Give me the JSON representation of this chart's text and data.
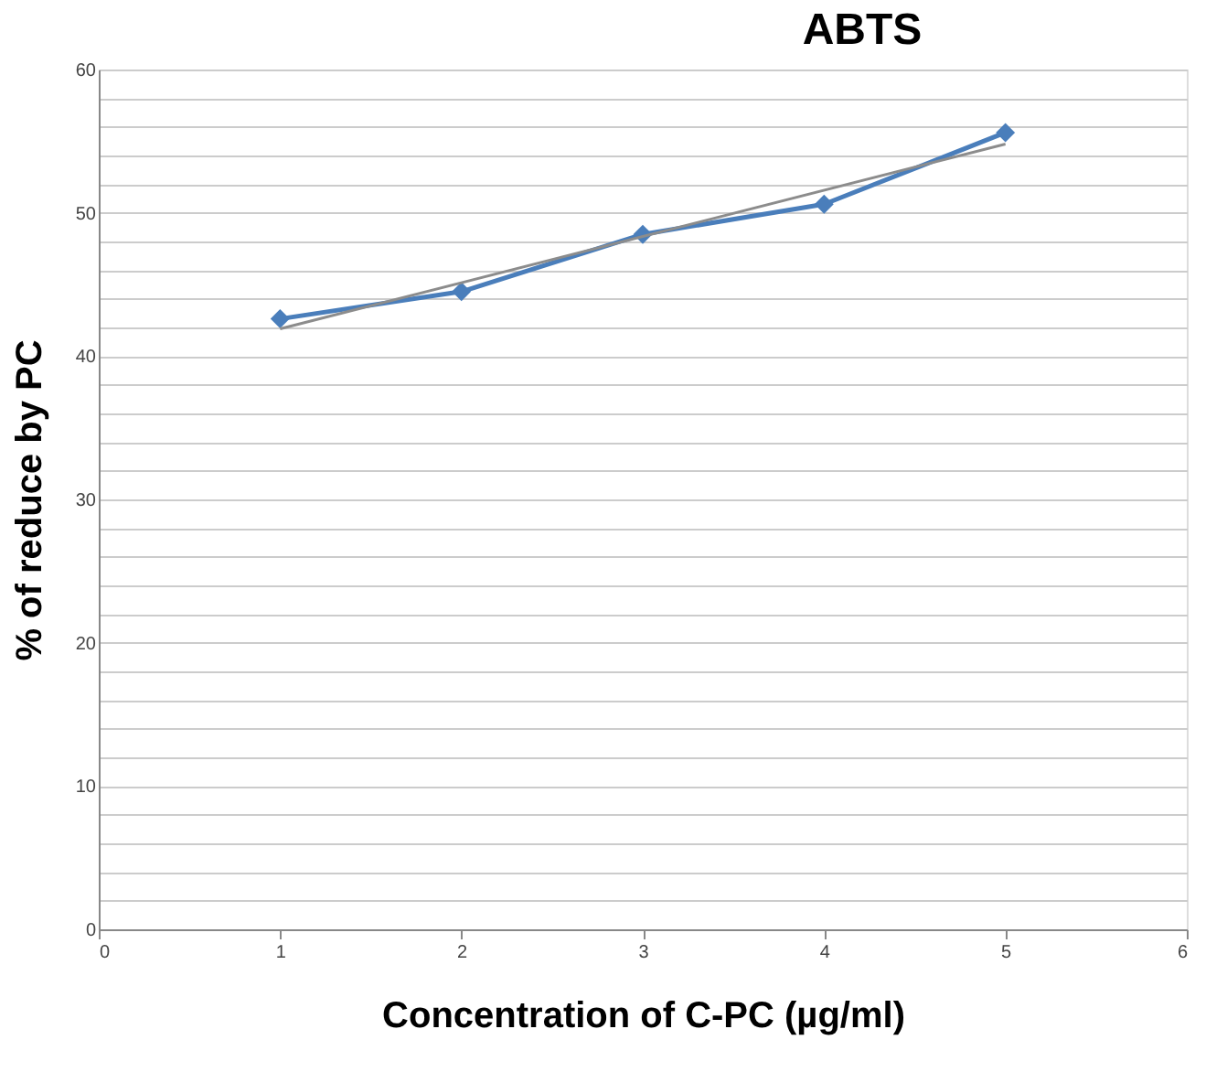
{
  "chart_data": {
    "type": "line",
    "title": "ABTS",
    "xlabel": "Concentration of C-PC  (µg/ml)",
    "ylabel": "% of reduce by PC",
    "x": [
      1,
      2,
      3,
      4,
      5
    ],
    "series": [
      {
        "color": "#4a7ebb",
        "values": [
          42.6,
          44.5,
          48.5,
          50.6,
          55.6
        ],
        "marker": "diamond"
      },
      {
        "type": "line",
        "color": "#8c8c8c",
        "x": [
          1,
          5
        ],
        "values": [
          41.9,
          54.8
        ],
        "marker": "none"
      }
    ],
    "xlim": [
      0,
      6
    ],
    "xticks": [
      0,
      1,
      2,
      3,
      4,
      5,
      6
    ],
    "ylim": [
      0,
      60
    ],
    "yticks": [
      0,
      {
        "value": 2,
        "label": null
      },
      {
        "value": 4,
        "label": null
      },
      {
        "value": 6,
        "label": null
      },
      {
        "value": 8,
        "label": null
      },
      10,
      {
        "value": 12,
        "label": null
      },
      {
        "value": 14,
        "label": null
      },
      {
        "value": 16,
        "label": null
      },
      {
        "value": 18,
        "label": null
      },
      20,
      {
        "value": 22,
        "label": null
      },
      {
        "value": 24,
        "label": null
      },
      {
        "value": 26,
        "label": null
      },
      {
        "value": 28,
        "label": null
      },
      30,
      {
        "value": 32,
        "label": null
      },
      {
        "value": 34,
        "label": null
      },
      {
        "value": 36,
        "label": null
      },
      {
        "value": 38,
        "label": null
      },
      40,
      {
        "value": 42,
        "label": null
      },
      {
        "value": 44,
        "label": null
      },
      {
        "value": 46,
        "label": null
      },
      {
        "value": 48,
        "label": null
      },
      50,
      {
        "value": 52,
        "label": null
      },
      {
        "value": 54,
        "label": null
      },
      {
        "value": 56,
        "label": null
      },
      {
        "value": 58,
        "label": null
      },
      60
    ],
    "grid": "y"
  }
}
